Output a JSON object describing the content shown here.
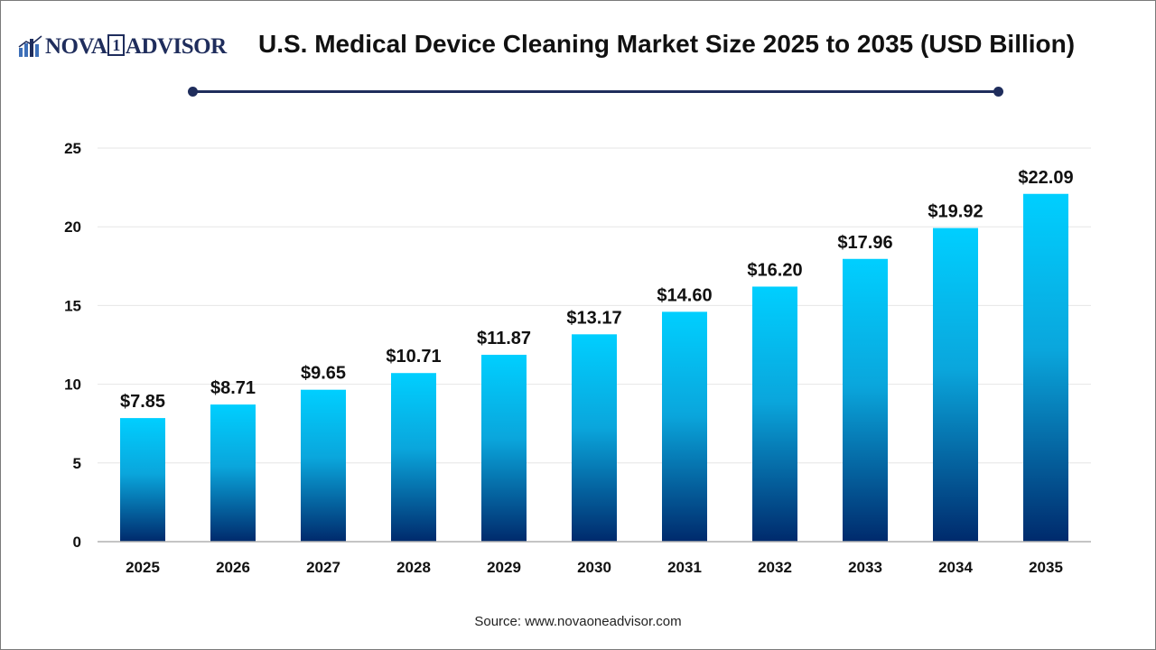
{
  "header": {
    "logo_text_left": "NOVA",
    "logo_text_one": "1",
    "logo_text_right": "ADVISOR",
    "logo_icon": "bar-chart-logo-icon",
    "title": "U.S. Medical Device Cleaning Market Size 2025 to 2035 (USD Billion)"
  },
  "footer": {
    "source": "Source: www.novaoneadvisor.com"
  },
  "colors": {
    "brand_navy": "#1f2d5c",
    "bar_top": "#00cfff",
    "bar_bottom": "#002a6c",
    "grid": "#e6e6e6",
    "text": "#111111"
  },
  "chart_data": {
    "type": "bar",
    "title": "U.S. Medical Device Cleaning Market Size 2025 to 2035 (USD Billion)",
    "xlabel": "",
    "ylabel": "",
    "categories": [
      "2025",
      "2026",
      "2027",
      "2028",
      "2029",
      "2030",
      "2031",
      "2032",
      "2033",
      "2034",
      "2035"
    ],
    "values": [
      7.85,
      8.71,
      9.65,
      10.71,
      11.87,
      13.17,
      14.6,
      16.2,
      17.96,
      19.92,
      22.09
    ],
    "data_labels": [
      "$7.85",
      "$8.71",
      "$9.65",
      "$10.71",
      "$11.87",
      "$13.17",
      "$14.60",
      "$16.20",
      "$17.96",
      "$19.92",
      "$22.09"
    ],
    "yticks": [
      "0",
      "5",
      "10",
      "15",
      "20",
      "25"
    ],
    "ylim": [
      0,
      25
    ],
    "grid": true,
    "legend": "none"
  }
}
